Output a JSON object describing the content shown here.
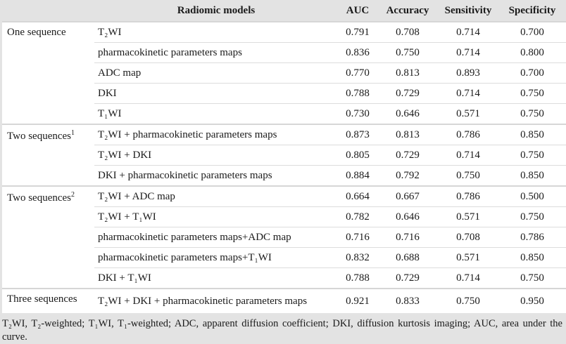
{
  "header": {
    "col_group": "",
    "col_model": "Radiomic models",
    "col_auc": "AUC",
    "col_accuracy": "Accuracy",
    "col_sensitivity": "Sensitivity",
    "col_specificity": "Specificity"
  },
  "groups": [
    {
      "label": "One sequence",
      "sup": "",
      "rows": [
        {
          "model": "T₂WI",
          "auc": "0.791",
          "accuracy": "0.708",
          "sensitivity": "0.714",
          "specificity": "0.700"
        },
        {
          "model": "pharmacokinetic parameters maps",
          "auc": "0.836",
          "accuracy": "0.750",
          "sensitivity": "0.714",
          "specificity": "0.800"
        },
        {
          "model": "ADC map",
          "auc": "0.770",
          "accuracy": "0.813",
          "sensitivity": "0.893",
          "specificity": "0.700"
        },
        {
          "model": "DKI",
          "auc": "0.788",
          "accuracy": "0.729",
          "sensitivity": "0.714",
          "specificity": "0.750"
        },
        {
          "model": "T₁WI",
          "auc": "0.730",
          "accuracy": "0.646",
          "sensitivity": "0.571",
          "specificity": "0.750"
        }
      ]
    },
    {
      "label": "Two sequences",
      "sup": "1",
      "rows": [
        {
          "model": "T₂WI + pharmacokinetic parameters maps",
          "auc": "0.873",
          "accuracy": "0.813",
          "sensitivity": "0.786",
          "specificity": "0.850"
        },
        {
          "model": "T₂WI + DKI",
          "auc": "0.805",
          "accuracy": "0.729",
          "sensitivity": "0.714",
          "specificity": "0.750"
        },
        {
          "model": "DKI + pharmacokinetic parameters maps",
          "auc": "0.884",
          "accuracy": "0.792",
          "sensitivity": "0.750",
          "specificity": "0.850"
        }
      ]
    },
    {
      "label": "Two sequences",
      "sup": "2",
      "rows": [
        {
          "model": "T₂WI + ADC map",
          "auc": "0.664",
          "accuracy": "0.667",
          "sensitivity": "0.786",
          "specificity": "0.500"
        },
        {
          "model": "T₂WI + T₁WI",
          "auc": "0.782",
          "accuracy": "0.646",
          "sensitivity": "0.571",
          "specificity": "0.750"
        },
        {
          "model": "pharmacokinetic parameters maps+ADC map",
          "auc": "0.716",
          "accuracy": "0.716",
          "sensitivity": "0.708",
          "specificity": "0.786"
        },
        {
          "model": "pharmacokinetic parameters maps+T₁WI",
          "auc": "0.832",
          "accuracy": "0.688",
          "sensitivity": "0.571",
          "specificity": "0.850"
        },
        {
          "model": "DKI + T₁WI",
          "auc": "0.788",
          "accuracy": "0.729",
          "sensitivity": "0.714",
          "specificity": "0.750"
        }
      ]
    },
    {
      "label": "Three sequences",
      "sup": "",
      "rows": [
        {
          "model": "T₂WI + DKI + pharmacokinetic parameters maps",
          "auc": "0.921",
          "accuracy": "0.833",
          "sensitivity": "0.750",
          "specificity": "0.950"
        }
      ]
    }
  ],
  "footnote": "T₂WI, T₂-weighted; T₁WI, T₁-weighted; ADC, apparent diffusion coefficient; DKI, diffusion kurtosis imaging; AUC, area under the curve."
}
